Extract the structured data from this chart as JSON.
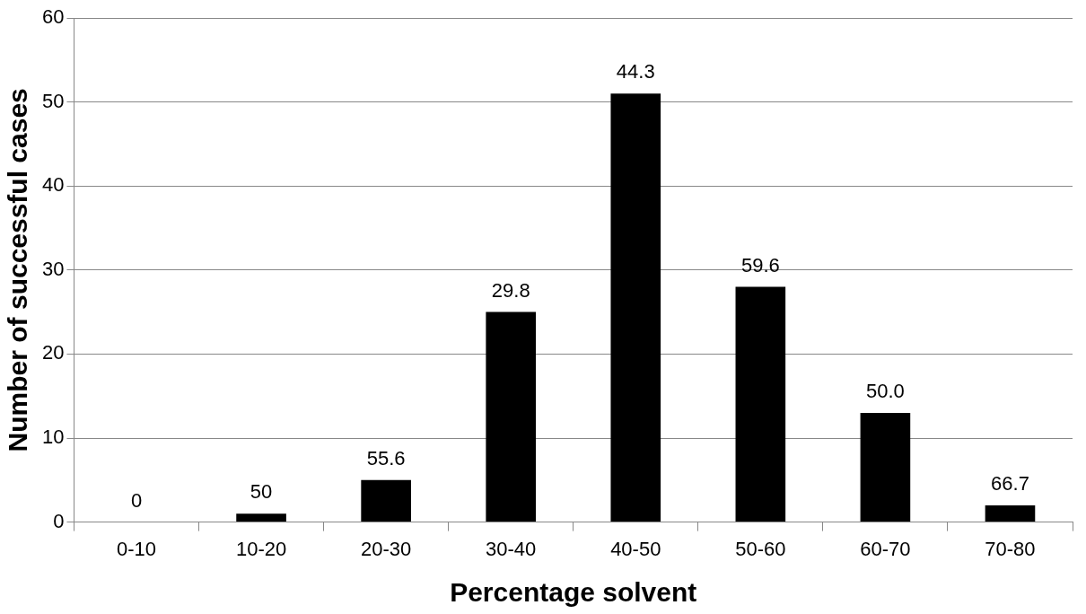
{
  "chart_data": {
    "type": "bar",
    "xlabel": "Percentage solvent",
    "ylabel": "Number of successful cases",
    "categories": [
      "0-10",
      "10-20",
      "20-30",
      "30-40",
      "40-50",
      "50-60",
      "60-70",
      "70-80"
    ],
    "values": [
      0,
      1,
      5,
      25,
      51,
      28,
      13,
      2
    ],
    "color": "#000000",
    "annotations": [
      {
        "text": "0",
        "x": "0-10",
        "y": 0
      },
      {
        "text": "50",
        "x": "10-20",
        "y": 1
      },
      {
        "text": "55.6",
        "x": "20-30",
        "y": 5
      },
      {
        "text": "29.8",
        "x": "30-40",
        "y": 25
      },
      {
        "text": "44.3",
        "x": "40-50",
        "y": 51
      },
      {
        "text": "59.6",
        "x": "50-60",
        "y": 28
      },
      {
        "text": "50.0",
        "x": "60-70",
        "y": 13
      },
      {
        "text": "66.7",
        "x": "70-80",
        "y": 2
      }
    ],
    "ylim": [
      0,
      60
    ],
    "yticks": [
      0,
      10,
      20,
      30,
      40,
      50,
      60
    ],
    "grid": "y"
  }
}
